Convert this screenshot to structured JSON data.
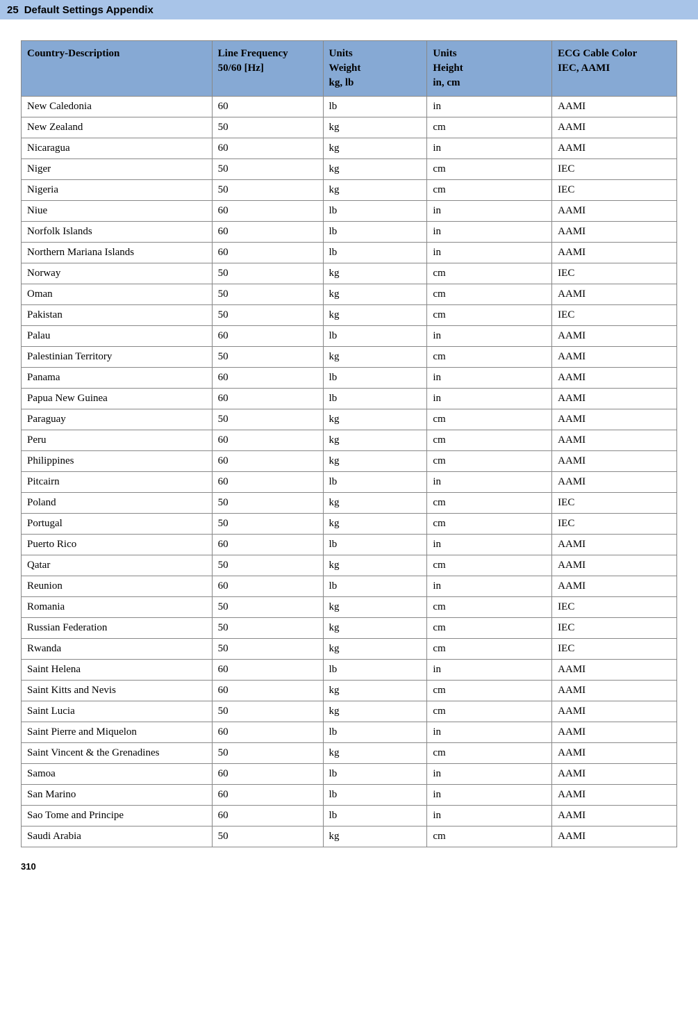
{
  "header": {
    "chapter": "25",
    "title": "Default Settings Appendix"
  },
  "table": {
    "columns": [
      {
        "line1": "Country-Description",
        "line2": "",
        "line3": ""
      },
      {
        "line1": "Line Frequency",
        "line2": "50/60 [Hz]",
        "line3": ""
      },
      {
        "line1": "Units",
        "line2": "Weight",
        "line3": "kg, lb"
      },
      {
        "line1": "Units",
        "line2": "Height",
        "line3": "in, cm"
      },
      {
        "line1": "ECG Cable Color",
        "line2": "IEC, AAMI",
        "line3": ""
      }
    ],
    "rows": [
      [
        "New Caledonia",
        "60",
        "lb",
        "in",
        "AAMI"
      ],
      [
        "New Zealand",
        "50",
        "kg",
        "cm",
        "AAMI"
      ],
      [
        "Nicaragua",
        "60",
        "kg",
        "in",
        "AAMI"
      ],
      [
        "Niger",
        "50",
        "kg",
        "cm",
        "IEC"
      ],
      [
        "Nigeria",
        "50",
        "kg",
        "cm",
        "IEC"
      ],
      [
        "Niue",
        "60",
        "lb",
        "in",
        "AAMI"
      ],
      [
        "Norfolk Islands",
        "60",
        "lb",
        "in",
        "AAMI"
      ],
      [
        "Northern Mariana Islands",
        "60",
        "lb",
        "in",
        "AAMI"
      ],
      [
        "Norway",
        "50",
        "kg",
        "cm",
        "IEC"
      ],
      [
        "Oman",
        "50",
        "kg",
        "cm",
        "AAMI"
      ],
      [
        "Pakistan",
        "50",
        "kg",
        "cm",
        "IEC"
      ],
      [
        "Palau",
        "60",
        "lb",
        "in",
        "AAMI"
      ],
      [
        "Palestinian Territory",
        "50",
        "kg",
        "cm",
        "AAMI"
      ],
      [
        "Panama",
        "60",
        "lb",
        "in",
        "AAMI"
      ],
      [
        "Papua New Guinea",
        "60",
        "lb",
        "in",
        "AAMI"
      ],
      [
        "Paraguay",
        "50",
        "kg",
        "cm",
        "AAMI"
      ],
      [
        "Peru",
        "60",
        "kg",
        "cm",
        "AAMI"
      ],
      [
        "Philippines",
        "60",
        "kg",
        "cm",
        "AAMI"
      ],
      [
        "Pitcairn",
        "60",
        "lb",
        "in",
        "AAMI"
      ],
      [
        "Poland",
        "50",
        "kg",
        "cm",
        "IEC"
      ],
      [
        "Portugal",
        "50",
        "kg",
        "cm",
        "IEC"
      ],
      [
        "Puerto Rico",
        "60",
        "lb",
        "in",
        "AAMI"
      ],
      [
        "Qatar",
        "50",
        "kg",
        "cm",
        "AAMI"
      ],
      [
        "Reunion",
        "60",
        "lb",
        "in",
        "AAMI"
      ],
      [
        "Romania",
        "50",
        "kg",
        "cm",
        "IEC"
      ],
      [
        "Russian Federation",
        "50",
        "kg",
        "cm",
        "IEC"
      ],
      [
        "Rwanda",
        "50",
        "kg",
        "cm",
        "IEC"
      ],
      [
        "Saint Helena",
        "60",
        "lb",
        "in",
        "AAMI"
      ],
      [
        "Saint Kitts and Nevis",
        "60",
        "kg",
        "cm",
        "AAMI"
      ],
      [
        "Saint Lucia",
        "50",
        "kg",
        "cm",
        "AAMI"
      ],
      [
        "Saint Pierre and Miquelon",
        "60",
        "lb",
        "in",
        "AAMI"
      ],
      [
        "Saint Vincent & the Grenadines",
        "50",
        "kg",
        "cm",
        "AAMI"
      ],
      [
        "Samoa",
        "60",
        "lb",
        "in",
        "AAMI"
      ],
      [
        "San Marino",
        "60",
        "lb",
        "in",
        "AAMI"
      ],
      [
        "Sao Tome and Principe",
        "60",
        "lb",
        "in",
        "AAMI"
      ],
      [
        "Saudi Arabia",
        "50",
        "kg",
        "cm",
        "AAMI"
      ]
    ]
  },
  "page_number": "310"
}
